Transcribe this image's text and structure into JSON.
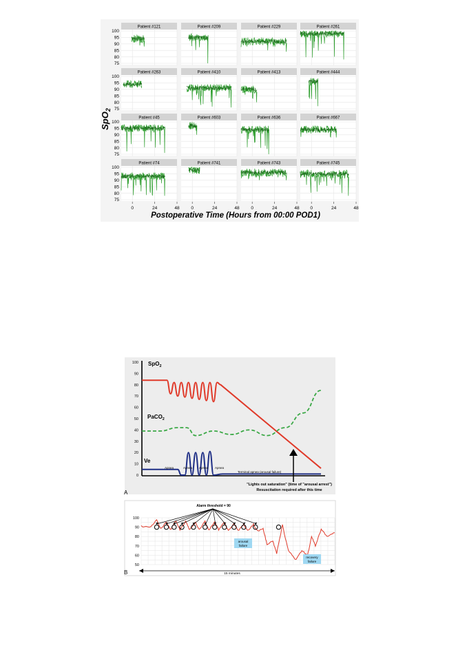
{
  "figure1": {
    "ylabel": "SpO",
    "ylabel_sub": "2",
    "xlabel": "Postoperative Time (Hours from 00:00 POD1)",
    "yticks": [
      "100",
      "95",
      "90",
      "85",
      "80",
      "75"
    ],
    "xticks": [
      "0",
      "24",
      "48"
    ]
  },
  "figure2a": {
    "panel_label": "A",
    "yticks": [
      "100",
      "90",
      "80",
      "70",
      "60",
      "50",
      "40",
      "30",
      "20",
      "10",
      "0"
    ],
    "label_spo2": "SpO",
    "label_spo2_sub": "2",
    "label_paco2": "PaCO",
    "label_paco2_sub": "2",
    "label_ve": "Ve",
    "apnea_label": "Apnea",
    "terminal_label": "Terminal apnea (arousal failure)",
    "annotation_line1": "\"Lights out saturation\" (time of \"arousal arrest\")",
    "annotation_line2": "Resuscitation required after this time"
  },
  "figure2b": {
    "panel_label": "B",
    "yticks": [
      "100",
      "90",
      "80",
      "70",
      "60",
      "50"
    ],
    "alarm_label": "Alarm threshold = 90",
    "arousal_failure": [
      "arousal",
      "failure"
    ],
    "recovery_failure": [
      "recovery",
      "failure"
    ],
    "duration_label": "15 minutes"
  },
  "colors": {
    "spo2_trace": "#2e9e2e",
    "spo2_trace_dark": "#1f6e1f",
    "strip_bg": "#d3d3d3",
    "red": "#e03a2a",
    "green_dash": "#3aa845",
    "blue": "#1f2f86",
    "callout_fill": "#9fd8f2"
  },
  "chart_data": [
    {
      "type": "line",
      "title": "",
      "ylabel": "SpO2",
      "xlabel": "Postoperative Time (Hours from 00:00 POD1)",
      "ylim": [
        75,
        100
      ],
      "xlim": [
        -12,
        48
      ],
      "x_ticks": [
        0,
        24,
        48
      ],
      "grid": true,
      "panels": [
        {
          "name": "Patient #121",
          "start": -1,
          "end": 13,
          "mean": 94,
          "low": 88
        },
        {
          "name": "Patient #209",
          "start": -4,
          "end": 17,
          "mean": 95,
          "low": 75
        },
        {
          "name": "Patient #229",
          "start": -12,
          "end": 37,
          "mean": 92,
          "low": 84
        },
        {
          "name": "Patient #261",
          "start": -12,
          "end": 35,
          "mean": 98,
          "low": 78
        },
        {
          "name": "Patient #263",
          "start": -10,
          "end": 10,
          "mean": 94,
          "low": 91
        },
        {
          "name": "Patient #410",
          "start": -6,
          "end": 42,
          "mean": 91,
          "low": 76
        },
        {
          "name": "Patient #413",
          "start": -12,
          "end": 5,
          "mean": 90,
          "low": 80
        },
        {
          "name": "Patient #444",
          "start": -3,
          "end": 7,
          "mean": 96,
          "low": 77
        },
        {
          "name": "Patient #45",
          "start": -12,
          "end": 35,
          "mean": 95,
          "low": 76
        },
        {
          "name": "Patient #603",
          "start": -4,
          "end": 5,
          "mean": 97,
          "low": 90
        },
        {
          "name": "Patient #636",
          "start": -12,
          "end": 18,
          "mean": 94,
          "low": 75
        },
        {
          "name": "Patient #667",
          "start": -12,
          "end": 27,
          "mean": 94,
          "low": 88
        },
        {
          "name": "Patient #74",
          "start": -12,
          "end": 35,
          "mean": 93,
          "low": 78
        },
        {
          "name": "Patient #741",
          "start": -4,
          "end": 8,
          "mean": 98,
          "low": 95
        },
        {
          "name": "Patient #743",
          "start": -12,
          "end": 37,
          "mean": 96,
          "low": 90
        },
        {
          "name": "Patient #745",
          "start": -12,
          "end": 40,
          "mean": 95,
          "low": 78
        }
      ]
    },
    {
      "type": "line",
      "title": "",
      "ylim": [
        0,
        100
      ],
      "series": [
        {
          "name": "SpO2",
          "x": [
            0,
            12,
            14,
            16,
            18,
            20,
            22,
            24,
            26,
            28,
            30,
            32,
            34,
            36,
            38,
            40,
            42,
            44,
            100
          ],
          "y": [
            84,
            84,
            84,
            72,
            82,
            70,
            82,
            69,
            82,
            68,
            82,
            67,
            82,
            66,
            82,
            65,
            82,
            80,
            6
          ]
        },
        {
          "name": "PaCO2",
          "x": [
            0,
            10,
            20,
            25,
            30,
            40,
            50,
            60,
            70,
            80,
            90,
            100
          ],
          "y": [
            39,
            39,
            42,
            42,
            35,
            39,
            36,
            40,
            35,
            42,
            55,
            75
          ]
        },
        {
          "name": "Ve",
          "x": [
            0,
            20,
            22,
            24,
            26,
            28,
            30,
            32,
            34,
            36,
            38,
            40,
            45,
            100
          ],
          "y": [
            5,
            5,
            0,
            0,
            20,
            0,
            20,
            0,
            20,
            0,
            21,
            0,
            1,
            1
          ]
        }
      ]
    },
    {
      "type": "line",
      "title": "",
      "ylim": [
        50,
        100
      ],
      "alarm_threshold": 90,
      "series": [
        {
          "name": "SpO2",
          "x": [
            0,
            5,
            8,
            10,
            13,
            15,
            18,
            20,
            23,
            25,
            28,
            30,
            33,
            35,
            38,
            40,
            43,
            45,
            48,
            50,
            53,
            55,
            58,
            60,
            63,
            65,
            68,
            70,
            73,
            76,
            80,
            83,
            86,
            88,
            90,
            93,
            96,
            100
          ],
          "y": [
            91,
            90,
            98,
            88,
            96,
            87,
            97,
            87,
            96,
            87,
            95,
            87,
            96,
            87,
            96,
            87,
            95,
            86,
            94,
            86,
            93,
            86,
            93,
            86,
            88,
            72,
            75,
            62,
            92,
            65,
            55,
            65,
            60,
            80,
            70,
            88,
            80,
            84
          ]
        }
      ]
    }
  ]
}
